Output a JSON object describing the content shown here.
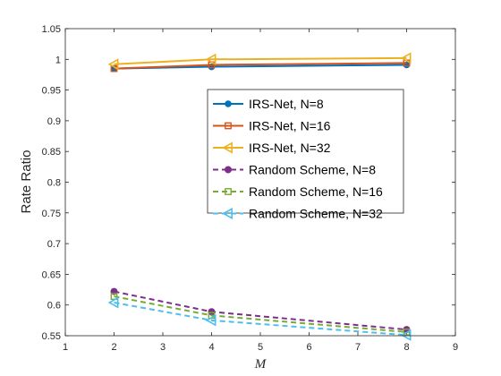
{
  "chart_data": {
    "type": "line",
    "title": "",
    "xlabel": "M",
    "ylabel": "Rate Ratio",
    "xlim": [
      1,
      9
    ],
    "ylim": [
      0.55,
      1.05
    ],
    "x_ticks": [
      "1",
      "2",
      "3",
      "4",
      "5",
      "6",
      "7",
      "8",
      "9"
    ],
    "y_ticks": [
      "0.55",
      "0.6",
      "0.65",
      "0.7",
      "0.75",
      "0.8",
      "0.85",
      "0.9",
      "0.95",
      "1",
      "1.05"
    ],
    "grid": false,
    "legend_position": "center-right",
    "x": [
      2,
      4,
      8
    ],
    "series": [
      {
        "name": "IRS-Net, N=8",
        "values": [
          0.985,
          0.988,
          0.991
        ],
        "color": "#0072BD",
        "marker": "circle",
        "dash": "solid"
      },
      {
        "name": "IRS-Net, N=16",
        "values": [
          0.985,
          0.991,
          0.994
        ],
        "color": "#D95319",
        "marker": "square",
        "dash": "solid"
      },
      {
        "name": "IRS-Net, N=32",
        "values": [
          0.992,
          1.0,
          1.002
        ],
        "color": "#EDB120",
        "marker": "triangle-left",
        "dash": "solid"
      },
      {
        "name": "Random Scheme, N=8",
        "values": [
          0.622,
          0.589,
          0.56
        ],
        "color": "#7E2F8E",
        "marker": "circle",
        "dash": "dashed"
      },
      {
        "name": "Random Scheme, N=16",
        "values": [
          0.614,
          0.583,
          0.556
        ],
        "color": "#77AC30",
        "marker": "square",
        "dash": "dashed"
      },
      {
        "name": "Random Scheme, N=32",
        "values": [
          0.604,
          0.575,
          0.551
        ],
        "color": "#4DBEEE",
        "marker": "triangle-left",
        "dash": "dashed"
      }
    ]
  }
}
